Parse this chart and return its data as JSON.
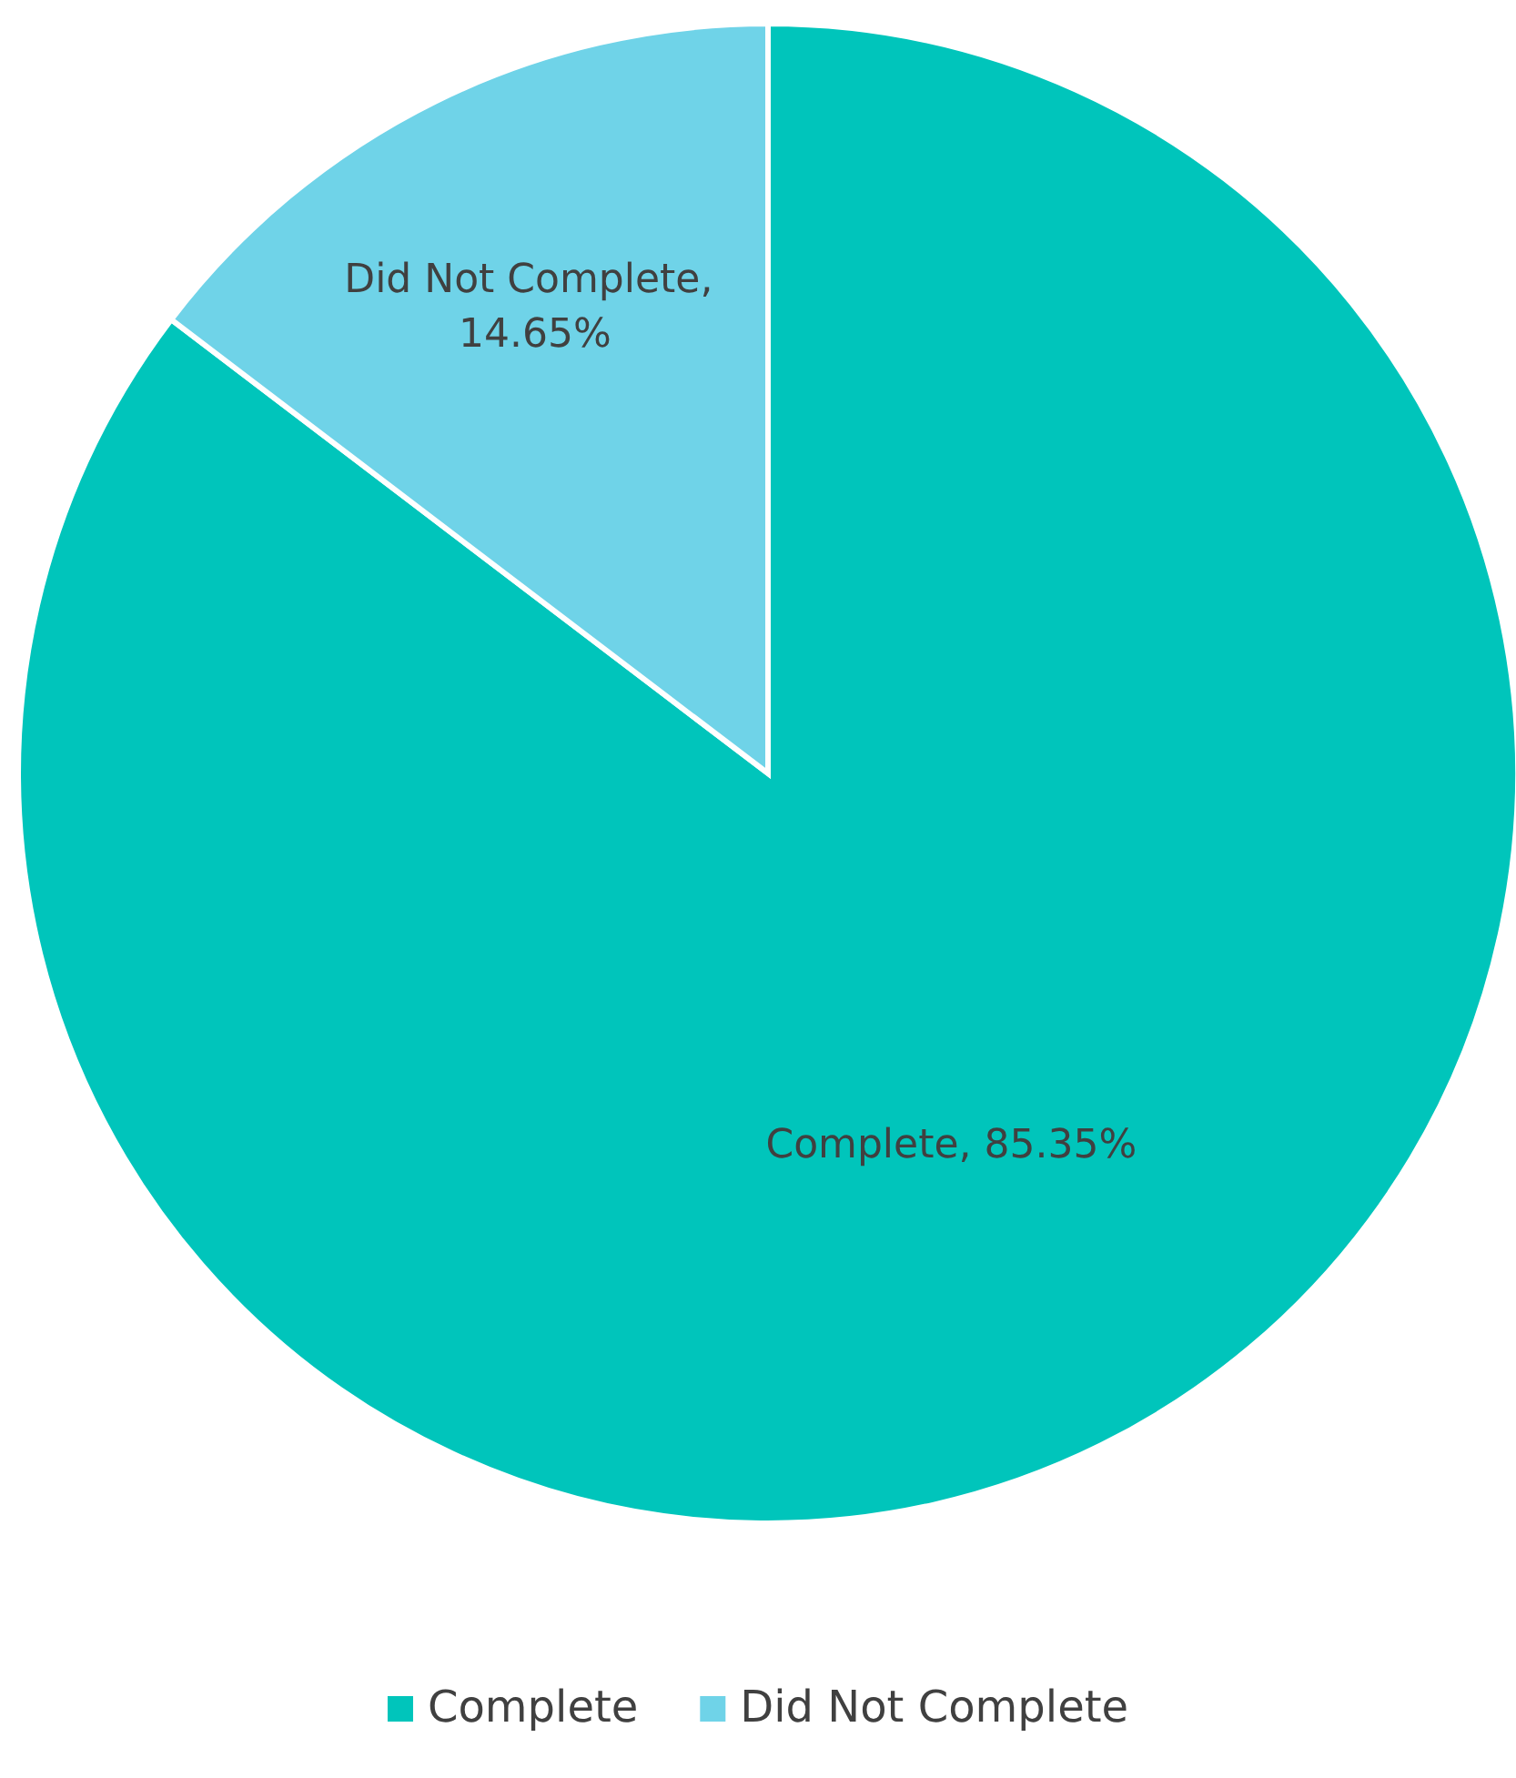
{
  "chart_data": {
    "type": "pie",
    "categories": [
      "Complete",
      "Did Not Complete"
    ],
    "values": [
      85.35,
      14.65
    ],
    "colors": [
      "#00c5bb",
      "#6fd3e8"
    ],
    "value_labels": [
      "Complete, 85.35%",
      "Did Not Complete, 14.65%"
    ],
    "legend": "bottom"
  }
}
